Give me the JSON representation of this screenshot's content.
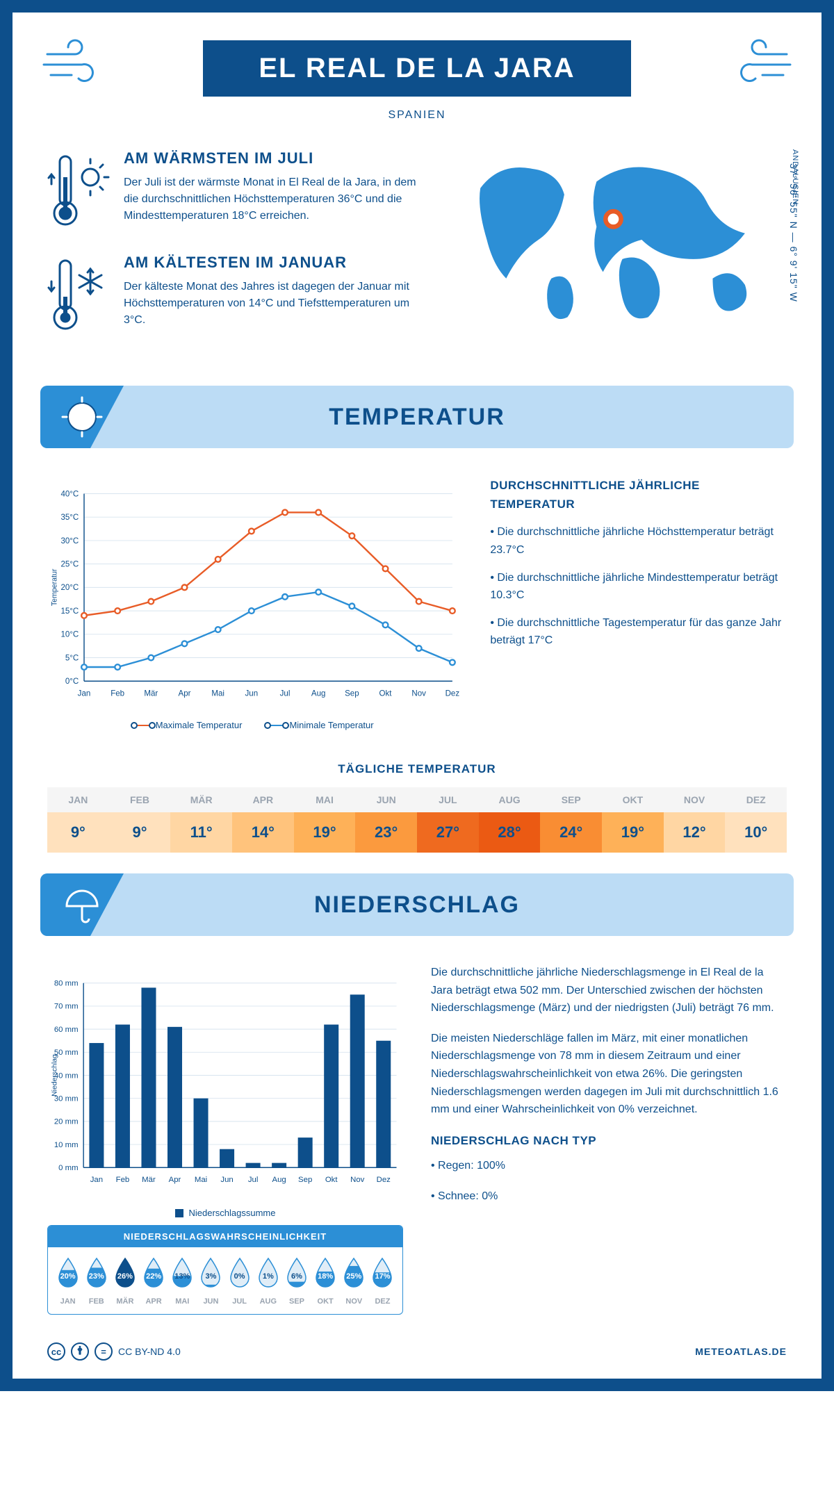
{
  "header": {
    "title": "EL REAL DE LA JARA",
    "country": "SPANIEN",
    "coords": "37° 56' 55\" N — 6° 9' 15\" W",
    "region": "ANDALUSIEN"
  },
  "intro": {
    "warm": {
      "heading": "AM WÄRMSTEN IM JULI",
      "text": "Der Juli ist der wärmste Monat in El Real de la Jara, in dem die durchschnittlichen Höchsttemperaturen 36°C und die Mindesttemperaturen 18°C erreichen."
    },
    "cold": {
      "heading": "AM KÄLTESTEN IM JANUAR",
      "text": "Der kälteste Monat des Jahres ist dagegen der Januar mit Höchsttemperaturen von 14°C und Tiefsttemperaturen um 3°C."
    }
  },
  "sections": {
    "temperature": "TEMPERATUR",
    "precipitation": "NIEDERSCHLAG"
  },
  "temp_chart": {
    "type": "line",
    "months": [
      "Jan",
      "Feb",
      "Mär",
      "Apr",
      "Mai",
      "Jun",
      "Jul",
      "Aug",
      "Sep",
      "Okt",
      "Nov",
      "Dez"
    ],
    "max": [
      14,
      15,
      17,
      20,
      26,
      32,
      36,
      36,
      31,
      24,
      17,
      15
    ],
    "min": [
      3,
      3,
      5,
      8,
      11,
      15,
      18,
      19,
      16,
      12,
      7,
      4
    ],
    "ylim": [
      0,
      40
    ],
    "ytick_step": 5,
    "y_suffix": "°C",
    "ylabel": "Temperatur",
    "max_color": "#e85c27",
    "min_color": "#2c8fd6",
    "grid_color": "#d8e4ef",
    "legend_max": "Maximale Temperatur",
    "legend_min": "Minimale Temperatur"
  },
  "temp_text": {
    "heading": "DURCHSCHNITTLICHE JÄHRLICHE TEMPERATUR",
    "b1": "• Die durchschnittliche jährliche Höchsttemperatur beträgt 23.7°C",
    "b2": "• Die durchschnittliche jährliche Mindesttemperatur beträgt 10.3°C",
    "b3": "• Die durchschnittliche Tagestemperatur für das ganze Jahr beträgt 17°C"
  },
  "daily": {
    "heading": "TÄGLICHE TEMPERATUR",
    "months": [
      "JAN",
      "FEB",
      "MÄR",
      "APR",
      "MAI",
      "JUN",
      "JUL",
      "AUG",
      "SEP",
      "OKT",
      "NOV",
      "DEZ"
    ],
    "values": [
      "9°",
      "9°",
      "11°",
      "14°",
      "19°",
      "23°",
      "27°",
      "28°",
      "24°",
      "19°",
      "12°",
      "10°"
    ],
    "colors": [
      "#ffe1bd",
      "#ffe1bd",
      "#ffd6a3",
      "#ffc37c",
      "#feb158",
      "#fb9a3e",
      "#ef6a1f",
      "#eb5a13",
      "#f98d33",
      "#feb158",
      "#ffd6a3",
      "#ffe1bd"
    ]
  },
  "precip_chart": {
    "type": "bar",
    "months": [
      "Jan",
      "Feb",
      "Mär",
      "Apr",
      "Mai",
      "Jun",
      "Jul",
      "Aug",
      "Sep",
      "Okt",
      "Nov",
      "Dez"
    ],
    "values": [
      54,
      62,
      78,
      61,
      30,
      8,
      2,
      2,
      13,
      62,
      75,
      55
    ],
    "ylim": [
      0,
      80
    ],
    "ytick_step": 10,
    "y_suffix": " mm",
    "ylabel": "Niederschlag",
    "bar_color": "#0d4f8b",
    "grid_color": "#d8e4ef",
    "legend": "Niederschlagssumme"
  },
  "precip_text": {
    "p1": "Die durchschnittliche jährliche Niederschlagsmenge in El Real de la Jara beträgt etwa 502 mm. Der Unterschied zwischen der höchsten Niederschlagsmenge (März) und der niedrigsten (Juli) beträgt 76 mm.",
    "p2": "Die meisten Niederschläge fallen im März, mit einer monatlichen Niederschlagsmenge von 78 mm in diesem Zeitraum und einer Niederschlagswahrscheinlichkeit von etwa 26%. Die geringsten Niederschlagsmengen werden dagegen im Juli mit durchschnittlich 1.6 mm und einer Wahrscheinlichkeit von 0% verzeichnet.",
    "type_heading": "NIEDERSCHLAG NACH TYP",
    "rain": "• Regen: 100%",
    "snow": "• Schnee: 0%"
  },
  "prob": {
    "heading": "NIEDERSCHLAGSWAHRSCHEINLICHKEIT",
    "months": [
      "JAN",
      "FEB",
      "MÄR",
      "APR",
      "MAI",
      "JUN",
      "JUL",
      "AUG",
      "SEP",
      "OKT",
      "NOV",
      "DEZ"
    ],
    "pct": [
      "20%",
      "23%",
      "26%",
      "22%",
      "13%",
      "3%",
      "0%",
      "1%",
      "6%",
      "18%",
      "25%",
      "17%"
    ],
    "fill_level": [
      0.6,
      0.68,
      1.0,
      0.65,
      0.4,
      0.1,
      0.0,
      0.04,
      0.2,
      0.55,
      0.74,
      0.52
    ],
    "max_index": 2,
    "drop_color": "#2c8fd6",
    "drop_empty": "#e0edf7",
    "drop_dark": "#0d4f8b"
  },
  "footer": {
    "license": "CC BY-ND 4.0",
    "site": "METEOATLAS.DE"
  },
  "colors": {
    "primary": "#0d4f8b",
    "accent": "#2c8fd6",
    "banner_bg": "#bcdcf5",
    "orange": "#e85c27"
  }
}
